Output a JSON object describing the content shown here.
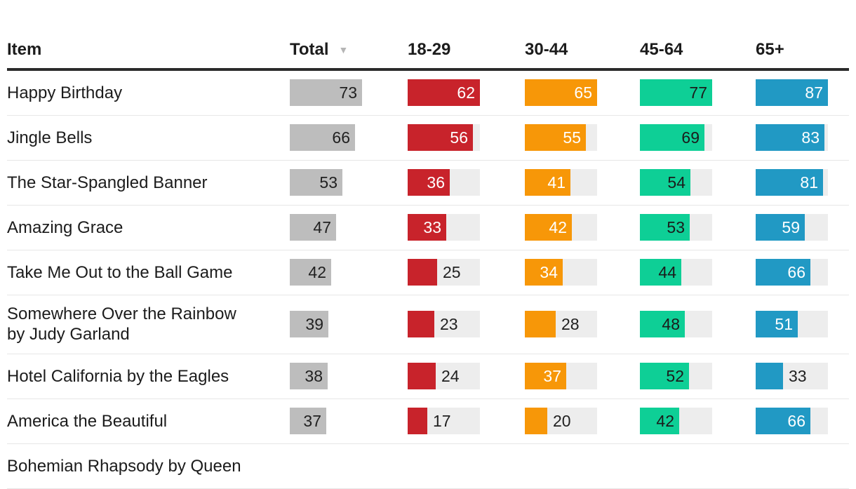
{
  "chart_data": {
    "type": "table",
    "description": "Song recognition table with horizontal bars per age group, sorted by Total descending",
    "header": {
      "item": "Item",
      "sort_icon": "▼"
    },
    "columns": [
      {
        "key": "total",
        "label": "Total",
        "color": "#bdbdbd",
        "value_text": "#212121",
        "track": false,
        "sorted": true
      },
      {
        "key": "18-29",
        "label": "18-29",
        "color": "#c8232b",
        "value_text": "#ffffff",
        "track": true,
        "sorted": false
      },
      {
        "key": "30-44",
        "label": "30-44",
        "color": "#f79708",
        "value_text": "#ffffff",
        "track": true,
        "sorted": false
      },
      {
        "key": "45-64",
        "label": "45-64",
        "color": "#0ecf96",
        "value_text": "#1b1b1b",
        "track": true,
        "sorted": false
      },
      {
        "key": "65+",
        "label": "65+",
        "color": "#2199c4",
        "value_text": "#ffffff",
        "track": true,
        "sorted": false
      }
    ],
    "rows": [
      {
        "label": "Happy Birthday",
        "values": [
          73,
          62,
          65,
          77,
          87
        ]
      },
      {
        "label": "Jingle Bells",
        "values": [
          66,
          56,
          55,
          69,
          83
        ]
      },
      {
        "label": "The Star-Spangled Banner",
        "values": [
          53,
          36,
          41,
          54,
          81
        ]
      },
      {
        "label": "Amazing Grace",
        "values": [
          47,
          33,
          42,
          53,
          59
        ]
      },
      {
        "label": "Take Me Out to the Ball Game",
        "values": [
          42,
          25,
          34,
          44,
          66
        ]
      },
      {
        "label": "Somewhere Over the Rainbow by Judy Garland",
        "values": [
          39,
          23,
          28,
          48,
          51
        ]
      },
      {
        "label": "Hotel California by the Eagles",
        "values": [
          38,
          24,
          37,
          52,
          33
        ]
      },
      {
        "label": "America the Beautiful",
        "values": [
          37,
          17,
          20,
          42,
          66
        ]
      },
      {
        "label": "Bohemian Rhapsody by Queen",
        "values": null
      }
    ],
    "layout_hints": {
      "track_color": "#ededed",
      "header_rule_color": "#2b2b2b",
      "row_divider_color": "#e7e7e7",
      "normalization": "per-column-max",
      "value_label_outside_color": "#212121"
    }
  }
}
